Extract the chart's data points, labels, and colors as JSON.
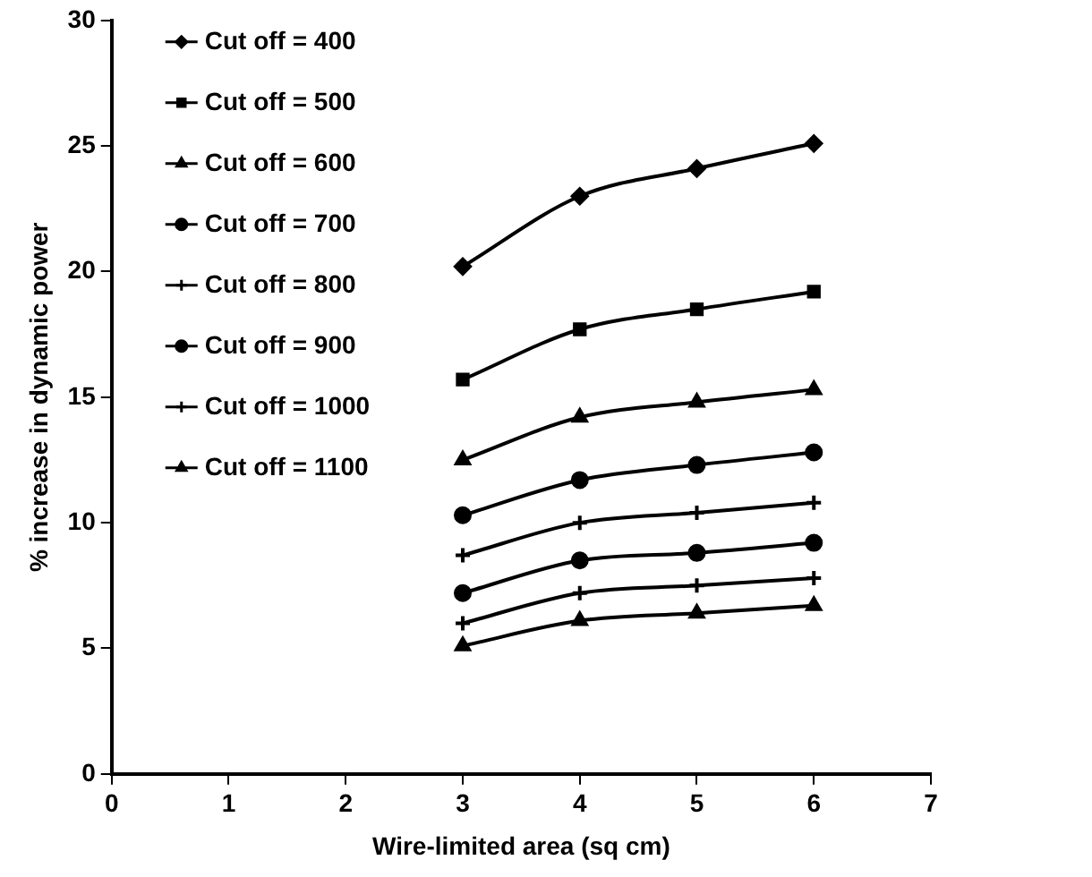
{
  "chart_data": {
    "type": "line",
    "xlabel": "Wire-limited area (sq cm)",
    "ylabel": "% increase in dynamic power",
    "x": [
      3,
      4,
      5,
      6
    ],
    "xlim": [
      0,
      7
    ],
    "xticks": [
      0,
      1,
      2,
      3,
      4,
      5,
      6,
      7
    ],
    "ylim": [
      0,
      30
    ],
    "yticks": [
      0,
      5,
      10,
      15,
      20,
      25,
      30
    ],
    "grid": false,
    "legend": "top left",
    "line_style": "solid",
    "series": [
      {
        "name": "Cut off = 400",
        "color": "#000000",
        "marker": "diamond",
        "values": [
          20.2,
          23.0,
          24.1,
          25.1
        ]
      },
      {
        "name": "Cut off = 500",
        "color": "#000000",
        "marker": "square",
        "values": [
          15.7,
          17.7,
          18.5,
          19.2
        ]
      },
      {
        "name": "Cut off = 600",
        "color": "#000000",
        "marker": "triangle",
        "values": [
          12.5,
          14.2,
          14.8,
          15.3
        ]
      },
      {
        "name": "Cut off = 700",
        "color": "#000000",
        "marker": "circle",
        "values": [
          10.3,
          11.7,
          12.3,
          12.8
        ]
      },
      {
        "name": "Cut off = 800",
        "color": "#000000",
        "marker": "cross",
        "values": [
          8.7,
          10.0,
          10.4,
          10.8
        ]
      },
      {
        "name": "Cut off = 900",
        "color": "#000000",
        "marker": "circle",
        "values": [
          7.2,
          8.5,
          8.8,
          9.2
        ]
      },
      {
        "name": "Cut off = 1000",
        "color": "#000000",
        "marker": "cross",
        "values": [
          6.0,
          7.2,
          7.5,
          7.8
        ]
      },
      {
        "name": "Cut off = 1100",
        "color": "#000000",
        "marker": "triangle",
        "values": [
          5.1,
          6.1,
          6.4,
          6.7
        ]
      }
    ]
  }
}
